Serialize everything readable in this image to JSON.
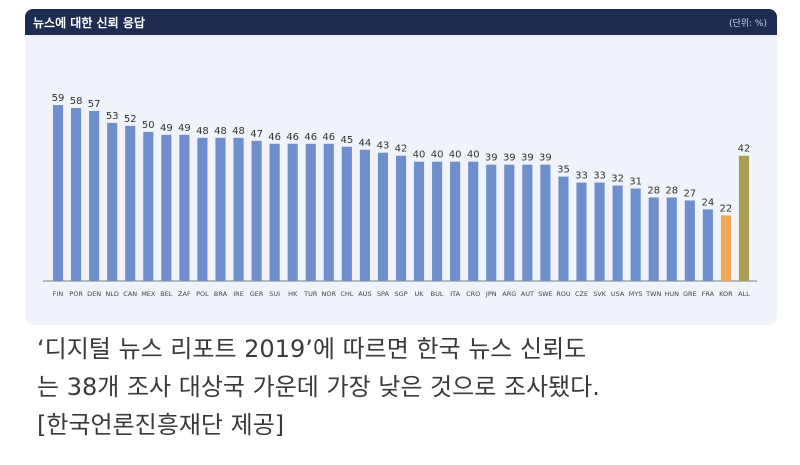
{
  "chart_data": {
    "type": "bar",
    "title": "뉴스에 대한 신뢰 응답",
    "unit": "(단위: %)",
    "categories": [
      "FIN",
      "POR",
      "DEN",
      "NLD",
      "CAN",
      "MEX",
      "BEL",
      "ZAF",
      "POL",
      "BRA",
      "IRE",
      "GER",
      "SUI",
      "HK",
      "TUR",
      "NOR",
      "CHL",
      "AUS",
      "SPA",
      "SGP",
      "UK",
      "BUL",
      "ITA",
      "CRO",
      "JPN",
      "ARG",
      "AUT",
      "SWE",
      "ROU",
      "CZE",
      "SVK",
      "USA",
      "MYS",
      "TWN",
      "HUN",
      "GRE",
      "FRA",
      "KOR",
      "ALL"
    ],
    "values": [
      59,
      58,
      57,
      53,
      52,
      50,
      49,
      49,
      48,
      48,
      48,
      47,
      46,
      46,
      46,
      46,
      45,
      44,
      43,
      42,
      40,
      40,
      40,
      40,
      39,
      39,
      39,
      39,
      35,
      33,
      33,
      32,
      31,
      28,
      28,
      27,
      24,
      22,
      42
    ],
    "ylim": [
      0,
      62
    ],
    "grid": false,
    "colors": {
      "default": "#6e8fcc",
      "highlight": "#f0a85c",
      "average": "#a99f52"
    },
    "highlight_category": "KOR",
    "average_category": "ALL"
  },
  "caption": {
    "line1": "‘디지털 뉴스 리포트 2019’에 따르면 한국 뉴스 신뢰도",
    "line2": "는 38개 조사 대상국 가운데 가장 낮은 것으로 조사됐다.",
    "line3": "[한국언론진흥재단 제공]"
  }
}
